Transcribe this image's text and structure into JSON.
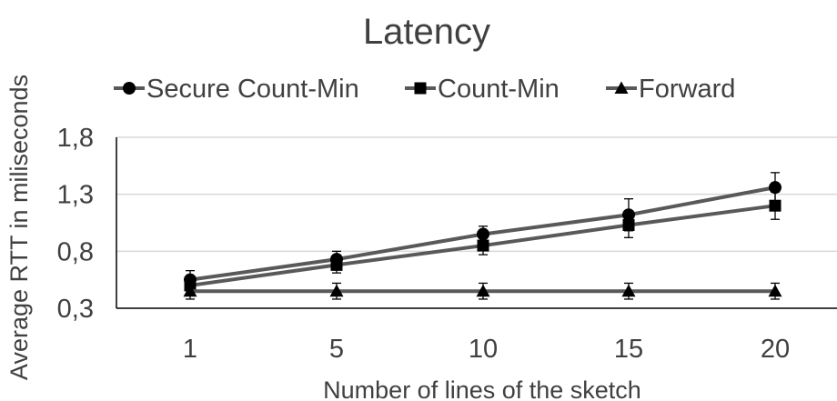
{
  "chart_data": {
    "type": "line",
    "title": "Latency",
    "xlabel": "Number of lines of the sketch",
    "ylabel": "Average RTT in miliseconds",
    "categories": [
      "1",
      "5",
      "10",
      "15",
      "20"
    ],
    "y_ticks": [
      "0,3",
      "0,8",
      "1,3",
      "1,8"
    ],
    "y_tick_values": [
      0.3,
      0.8,
      1.3,
      1.8
    ],
    "ylim": [
      0.3,
      1.8
    ],
    "grid": true,
    "legend_position": "top",
    "series": [
      {
        "name": "Secure Count-Min",
        "marker": "circle",
        "values": [
          0.55,
          0.73,
          0.95,
          1.12,
          1.36
        ],
        "error": [
          0.08,
          0.07,
          0.07,
          0.14,
          0.13
        ]
      },
      {
        "name": "Count-Min",
        "marker": "square",
        "values": [
          0.5,
          0.68,
          0.85,
          1.03,
          1.2
        ],
        "error": [
          0.08,
          0.07,
          0.08,
          0.11,
          0.12
        ]
      },
      {
        "name": "Forward",
        "marker": "triangle",
        "values": [
          0.45,
          0.45,
          0.45,
          0.45,
          0.45
        ],
        "error": [
          0.07,
          0.07,
          0.07,
          0.07,
          0.07
        ]
      }
    ],
    "colors": {
      "line": "#595959",
      "marker": "#000000",
      "grid": "#d9d9d9",
      "axis": "#000000",
      "text": "#404040"
    }
  }
}
